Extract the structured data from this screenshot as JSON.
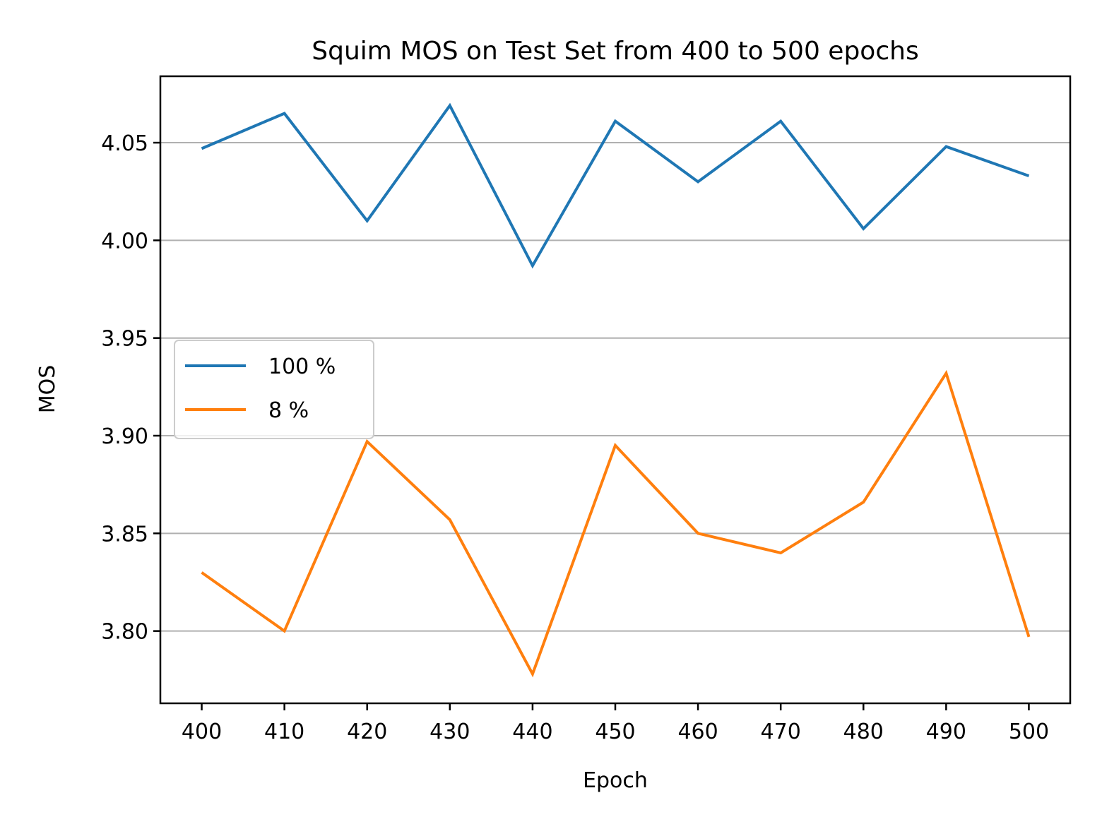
{
  "chart_data": {
    "type": "line",
    "title": "Squim MOS on Test Set from 400 to 500 epochs",
    "xlabel": "Epoch",
    "ylabel": "MOS",
    "x": [
      400,
      410,
      420,
      430,
      440,
      450,
      460,
      470,
      480,
      490,
      500
    ],
    "x_ticks": [
      "400",
      "410",
      "420",
      "430",
      "440",
      "450",
      "460",
      "470",
      "480",
      "490",
      "500"
    ],
    "y_ticks": [
      "3.80",
      "3.85",
      "3.90",
      "3.95",
      "4.00",
      "4.05"
    ],
    "y_tick_values": [
      3.8,
      3.85,
      3.9,
      3.95,
      4.0,
      4.05
    ],
    "xlim": [
      395,
      505
    ],
    "ylim": [
      3.763,
      4.084
    ],
    "grid": "horizontal",
    "legend_position": "center-left",
    "series": [
      {
        "name": "100 %",
        "color": "#1f77b4",
        "values": [
          4.047,
          4.065,
          4.01,
          4.069,
          3.987,
          4.061,
          4.03,
          4.061,
          4.006,
          4.048,
          4.033
        ]
      },
      {
        "name": "8 %",
        "color": "#ff7f0e",
        "values": [
          3.83,
          3.8,
          3.897,
          3.857,
          3.778,
          3.895,
          3.85,
          3.84,
          3.866,
          3.932,
          3.797
        ]
      }
    ]
  }
}
